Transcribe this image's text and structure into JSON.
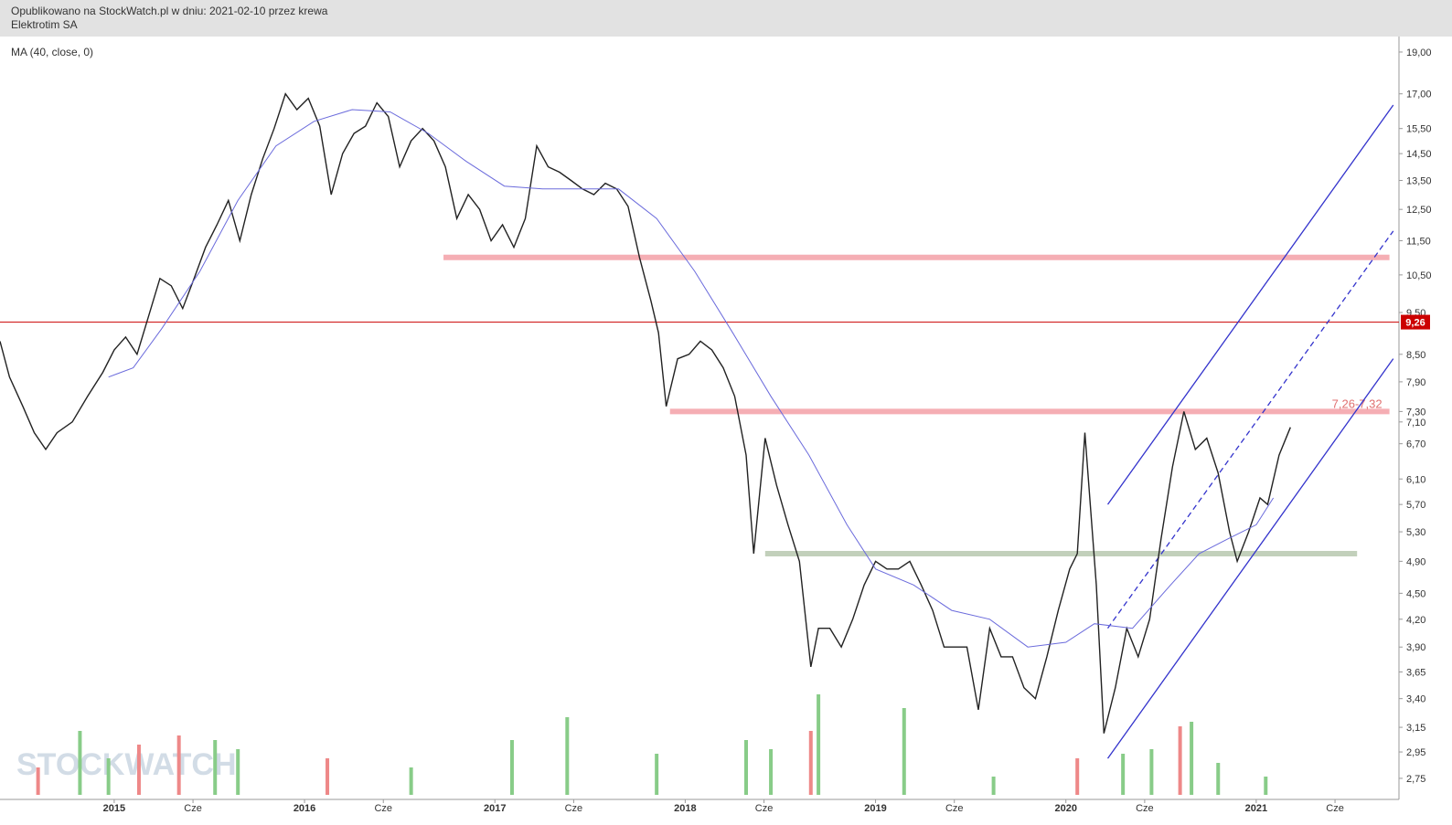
{
  "chart_data": {
    "type": "line",
    "subtitle": "Opublikowano na StockWatch.pl w dniu: 2021-02-10 przez krewa",
    "title": "Elektrotim SA",
    "watermark": "STOCKWATCH",
    "log_y": true,
    "xlim": [
      2014.4,
      2021.75
    ],
    "ylim": [
      2.6,
      19.8
    ],
    "xticks": [
      {
        "value": 2015,
        "label": "2015"
      },
      {
        "value": 2015.414,
        "label": "Cze"
      },
      {
        "value": 2016,
        "label": "2016"
      },
      {
        "value": 2016.414,
        "label": "Cze"
      },
      {
        "value": 2017,
        "label": "2017"
      },
      {
        "value": 2017.414,
        "label": "Cze"
      },
      {
        "value": 2018,
        "label": "2018"
      },
      {
        "value": 2018.414,
        "label": "Cze"
      },
      {
        "value": 2019,
        "label": "2019"
      },
      {
        "value": 2019.414,
        "label": "Cze"
      },
      {
        "value": 2020,
        "label": "2020"
      },
      {
        "value": 2020.414,
        "label": "Cze"
      },
      {
        "value": 2021,
        "label": "2021"
      },
      {
        "value": 2021.414,
        "label": "Cze"
      }
    ],
    "yticks": [
      {
        "value": 19.0,
        "label": "19,00"
      },
      {
        "value": 17.0,
        "label": "17,00"
      },
      {
        "value": 15.5,
        "label": "15,50"
      },
      {
        "value": 14.5,
        "label": "14,50"
      },
      {
        "value": 13.5,
        "label": "13,50"
      },
      {
        "value": 12.5,
        "label": "12,50"
      },
      {
        "value": 11.5,
        "label": "11,50"
      },
      {
        "value": 10.5,
        "label": "10,50"
      },
      {
        "value": 9.5,
        "label": "9,50"
      },
      {
        "value": 8.5,
        "label": "8,50"
      },
      {
        "value": 7.9,
        "label": "7,90"
      },
      {
        "value": 7.3,
        "label": "7,30"
      },
      {
        "value": 7.1,
        "label": "7,10"
      },
      {
        "value": 6.7,
        "label": "6,70"
      },
      {
        "value": 6.1,
        "label": "6,10"
      },
      {
        "value": 5.7,
        "label": "5,70"
      },
      {
        "value": 5.3,
        "label": "5,30"
      },
      {
        "value": 4.9,
        "label": "4,90"
      },
      {
        "value": 4.5,
        "label": "4,50"
      },
      {
        "value": 4.2,
        "label": "4,20"
      },
      {
        "value": 3.9,
        "label": "3,90"
      },
      {
        "value": 3.65,
        "label": "3,65"
      },
      {
        "value": 3.4,
        "label": "3,40"
      },
      {
        "value": 3.15,
        "label": "3,15"
      },
      {
        "value": 2.95,
        "label": "2,95"
      },
      {
        "value": 2.75,
        "label": "2,75"
      }
    ],
    "series": [
      {
        "color": "#222222",
        "x": [
          2014.4,
          2014.45,
          2014.52,
          2014.58,
          2014.64,
          2014.7,
          2014.78,
          2014.86,
          2014.94,
          2015.0,
          2015.06,
          2015.12,
          2015.18,
          2015.24,
          2015.3,
          2015.36,
          2015.42,
          2015.48,
          2015.54,
          2015.6,
          2015.66,
          2015.72,
          2015.78,
          2015.84,
          2015.9,
          2015.96,
          2016.02,
          2016.08,
          2016.14,
          2016.2,
          2016.26,
          2016.32,
          2016.38,
          2016.44,
          2016.5,
          2016.56,
          2016.62,
          2016.68,
          2016.74,
          2016.8,
          2016.86,
          2016.92,
          2016.98,
          2017.04,
          2017.1,
          2017.16,
          2017.22,
          2017.28,
          2017.34,
          2017.4,
          2017.46,
          2017.52,
          2017.58,
          2017.64,
          2017.7,
          2017.76,
          2017.82,
          2017.86,
          2017.9,
          2017.96,
          2018.02,
          2018.08,
          2018.14,
          2018.2,
          2018.26,
          2018.32,
          2018.36,
          2018.42,
          2018.48,
          2018.54,
          2018.6,
          2018.66,
          2018.7,
          2018.76,
          2018.82,
          2018.88,
          2018.94,
          2019.0,
          2019.06,
          2019.12,
          2019.18,
          2019.24,
          2019.3,
          2019.36,
          2019.42,
          2019.48,
          2019.54,
          2019.6,
          2019.66,
          2019.72,
          2019.78,
          2019.84,
          2019.9,
          2019.96,
          2020.02,
          2020.06,
          2020.1,
          2020.16,
          2020.2,
          2020.26,
          2020.32,
          2020.38,
          2020.44,
          2020.5,
          2020.56,
          2020.62,
          2020.68,
          2020.74,
          2020.8,
          2020.86,
          2020.9,
          2020.96,
          2021.02,
          2021.06,
          2021.12,
          2021.18
        ],
        "values": [
          8.8,
          8.0,
          7.4,
          6.9,
          6.6,
          6.9,
          7.1,
          7.6,
          8.1,
          8.6,
          8.9,
          8.5,
          9.4,
          10.4,
          10.2,
          9.6,
          10.4,
          11.3,
          12.0,
          12.8,
          11.5,
          13.0,
          14.3,
          15.5,
          17.0,
          16.3,
          16.8,
          15.6,
          13.0,
          14.5,
          15.3,
          15.6,
          16.6,
          16.0,
          14.0,
          15.0,
          15.5,
          15.0,
          14.0,
          12.2,
          13.0,
          12.5,
          11.5,
          12.0,
          11.3,
          12.2,
          14.8,
          14.0,
          13.8,
          13.5,
          13.2,
          13.0,
          13.4,
          13.2,
          12.6,
          11.0,
          9.8,
          9.0,
          7.4,
          8.4,
          8.5,
          8.8,
          8.6,
          8.2,
          7.6,
          6.5,
          5.0,
          6.8,
          6.0,
          5.4,
          4.9,
          3.7,
          4.1,
          4.1,
          3.9,
          4.2,
          4.6,
          4.9,
          4.8,
          4.8,
          4.9,
          4.6,
          4.3,
          3.9,
          3.9,
          3.9,
          3.3,
          4.1,
          3.8,
          3.8,
          3.5,
          3.4,
          3.8,
          4.3,
          4.8,
          5.0,
          6.9,
          4.6,
          3.1,
          3.5,
          4.1,
          3.8,
          4.2,
          5.2,
          6.3,
          7.3,
          6.6,
          6.8,
          6.2,
          5.3,
          4.9,
          5.3,
          5.8,
          5.7,
          6.5,
          7.0
        ]
      },
      {
        "name": "MA (40, close, 0)",
        "color": "#6b6bdc",
        "x": [
          2014.97,
          2015.1,
          2015.25,
          2015.45,
          2015.65,
          2015.85,
          2016.05,
          2016.25,
          2016.45,
          2016.65,
          2016.85,
          2017.05,
          2017.25,
          2017.45,
          2017.65,
          2017.85,
          2018.05,
          2018.25,
          2018.45,
          2018.65,
          2018.85,
          2019.0,
          2019.2,
          2019.4,
          2019.6,
          2019.8,
          2020.0,
          2020.15,
          2020.35,
          2020.55,
          2020.7,
          2020.85,
          2021.0,
          2021.09
        ],
        "values": [
          8.0,
          8.2,
          9.1,
          10.6,
          12.8,
          14.8,
          15.8,
          16.3,
          16.2,
          15.3,
          14.2,
          13.3,
          13.2,
          13.2,
          13.2,
          12.2,
          10.6,
          9.0,
          7.6,
          6.5,
          5.4,
          4.8,
          4.6,
          4.3,
          4.2,
          3.9,
          3.95,
          4.15,
          4.1,
          4.6,
          5.0,
          5.2,
          5.4,
          5.8
        ]
      }
    ],
    "volume": {
      "x": [
        2014.6,
        2014.82,
        2014.97,
        2015.13,
        2015.34,
        2015.53,
        2015.65,
        2016.12,
        2016.56,
        2017.09,
        2017.38,
        2017.85,
        2018.32,
        2018.45,
        2018.66,
        2018.7,
        2019.15,
        2019.62,
        2020.06,
        2020.3,
        2020.45,
        2020.6,
        2020.66,
        2020.8,
        2021.05
      ],
      "values": [
        30,
        70,
        40,
        55,
        65,
        60,
        50,
        40,
        30,
        60,
        85,
        45,
        60,
        50,
        70,
        110,
        95,
        20,
        40,
        45,
        50,
        75,
        80,
        35,
        20
      ],
      "colors": [
        "#e88",
        "#8c8",
        "#8c8",
        "#e88",
        "#e88",
        "#8c8",
        "#8c8",
        "#e88",
        "#8c8",
        "#8c8",
        "#8c8",
        "#8c8",
        "#8c8",
        "#8c8",
        "#e88",
        "#8c8",
        "#8c8",
        "#8c8",
        "#e88",
        "#8c8",
        "#8c8",
        "#e88",
        "#8c8",
        "#8c8",
        "#8c8"
      ]
    },
    "hlines": [
      {
        "y": 9.26,
        "label": "9,26",
        "color": "#cc0000"
      }
    ],
    "zones": [
      {
        "y": 11.0,
        "x": [
          2016.73,
          2021.7
        ],
        "color": "#f4a0a8"
      },
      {
        "y": 7.3,
        "x": [
          2017.92,
          2021.7
        ],
        "color": "#f4a0a8",
        "label": "7,26-7,32"
      },
      {
        "y": 5.0,
        "x": [
          2018.42,
          2021.53
        ],
        "color": "#b8c8b0"
      }
    ],
    "trendlines": [
      {
        "x": [
          2020.22,
          2021.72
        ],
        "y": [
          5.7,
          16.5
        ],
        "color": "#3333cc",
        "dashed": false
      },
      {
        "x": [
          2020.22,
          2021.72
        ],
        "y": [
          4.1,
          11.8
        ],
        "color": "#3333cc",
        "dashed": true
      },
      {
        "x": [
          2020.22,
          2021.72
        ],
        "y": [
          2.9,
          8.4
        ],
        "color": "#3333cc",
        "dashed": false
      }
    ]
  }
}
